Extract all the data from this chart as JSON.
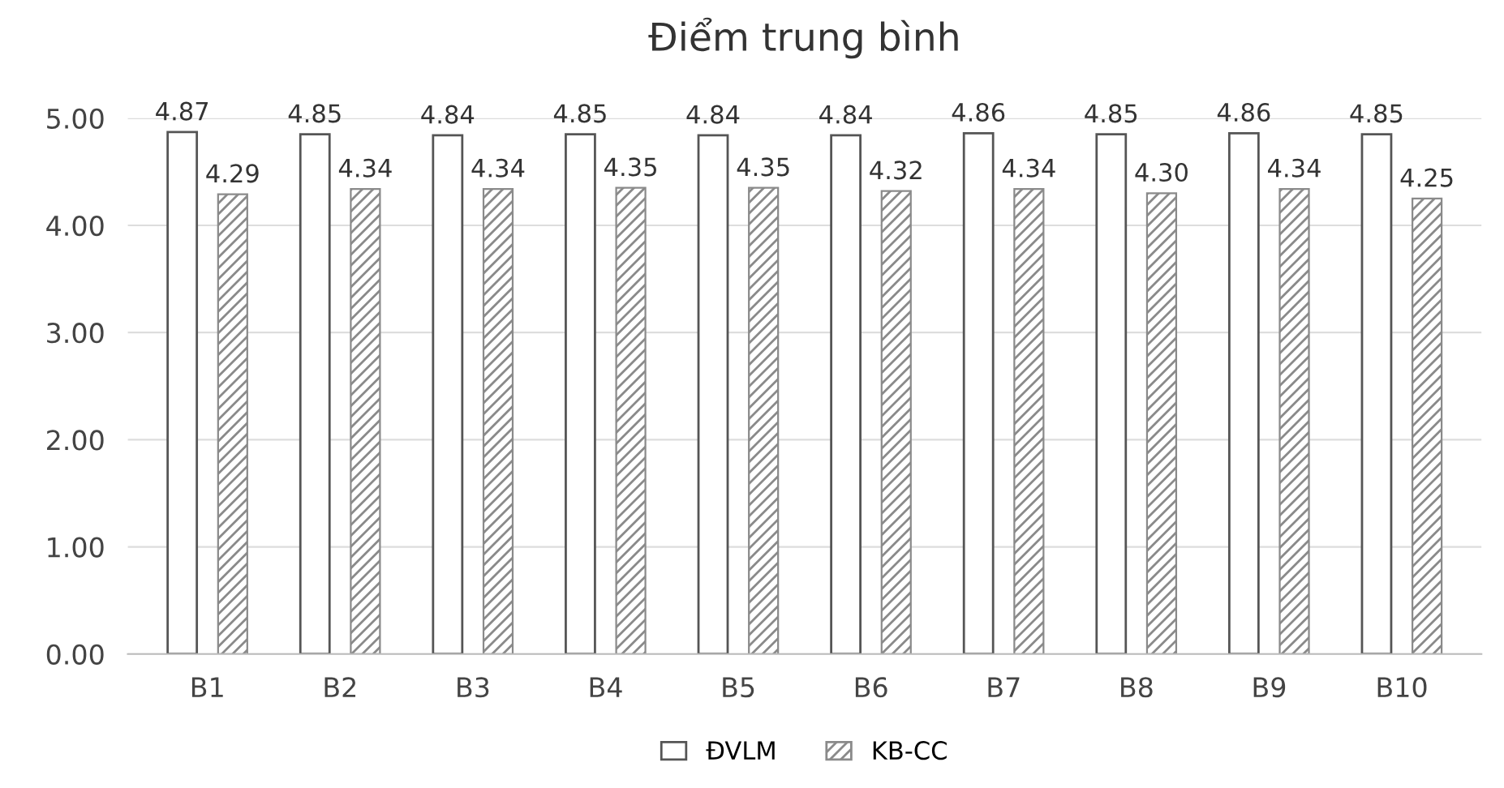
{
  "chart_data": {
    "type": "bar",
    "title": "Điểm trung bình",
    "categories": [
      "B1",
      "B2",
      "B3",
      "B4",
      "B5",
      "B6",
      "B7",
      "B8",
      "B9",
      "B10"
    ],
    "series": [
      {
        "name": "ĐVLM",
        "color": "#ffffff",
        "values": [
          4.87,
          4.85,
          4.84,
          4.85,
          4.84,
          4.84,
          4.86,
          4.85,
          4.86,
          4.85
        ],
        "value_labels": [
          "4.87",
          "4.85",
          "4.84",
          "4.85",
          "4.84",
          "4.84",
          "4.86",
          "4.85",
          "4.86",
          "4.85"
        ]
      },
      {
        "name": "KB-CC",
        "color": "#8a8a8a",
        "values": [
          4.29,
          4.34,
          4.34,
          4.35,
          4.35,
          4.32,
          4.34,
          4.3,
          4.34,
          4.25
        ],
        "value_labels": [
          "4.29",
          "4.34",
          "4.34",
          "4.35",
          "4.35",
          "4.32",
          "4.34",
          "4.30",
          "4.34",
          "4.25"
        ]
      }
    ],
    "ylim": [
      0,
      5
    ],
    "yticks": [
      {
        "value": 0,
        "label": "0.00"
      },
      {
        "value": 1,
        "label": "1.00"
      },
      {
        "value": 2,
        "label": "2.00"
      },
      {
        "value": 3,
        "label": "3.00"
      },
      {
        "value": 4,
        "label": "4.00"
      },
      {
        "value": 5,
        "label": "5.00"
      }
    ],
    "grid": "y",
    "legend": "bottom"
  }
}
